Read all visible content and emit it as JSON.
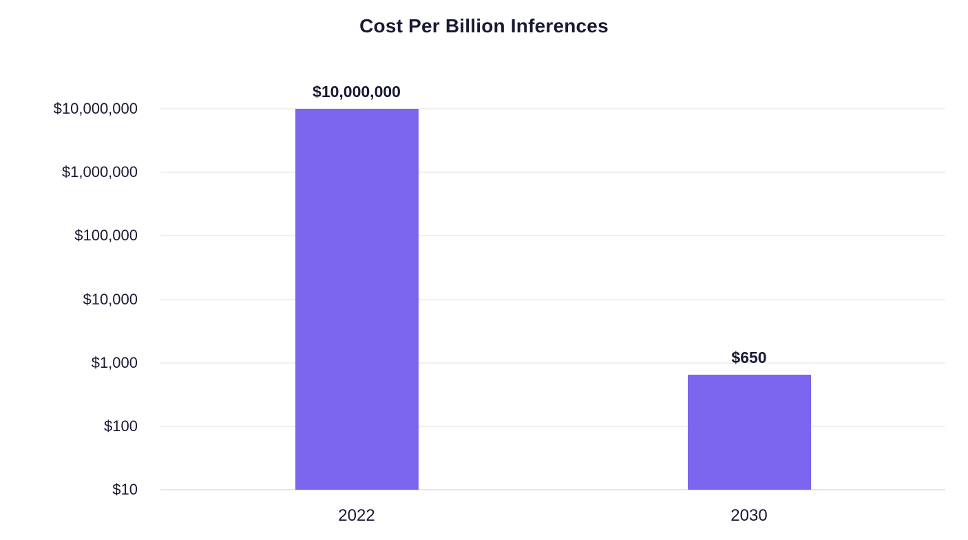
{
  "chart_data": {
    "type": "bar",
    "title": "Cost Per Billion Inferences",
    "categories": [
      "2022",
      "2030"
    ],
    "values": [
      10000000,
      650
    ],
    "value_labels": [
      "$10,000,000",
      "$650"
    ],
    "xlabel": "",
    "ylabel": "",
    "yscale": "log",
    "ylim": [
      10,
      10000000
    ],
    "yticks": [
      {
        "value": 10,
        "label": "$10"
      },
      {
        "value": 100,
        "label": "$100"
      },
      {
        "value": 1000,
        "label": "$1,000"
      },
      {
        "value": 10000,
        "label": "$10,000"
      },
      {
        "value": 100000,
        "label": "$100,000"
      },
      {
        "value": 1000000,
        "label": "$1,000,000"
      },
      {
        "value": 10000000,
        "label": "$10,000,000"
      }
    ],
    "grid": true,
    "legend": false,
    "colors": {
      "bar": "#7C66F0",
      "text": "#191934",
      "gridline": "#F0F0F3",
      "baseline": "#E4E4EC"
    }
  }
}
